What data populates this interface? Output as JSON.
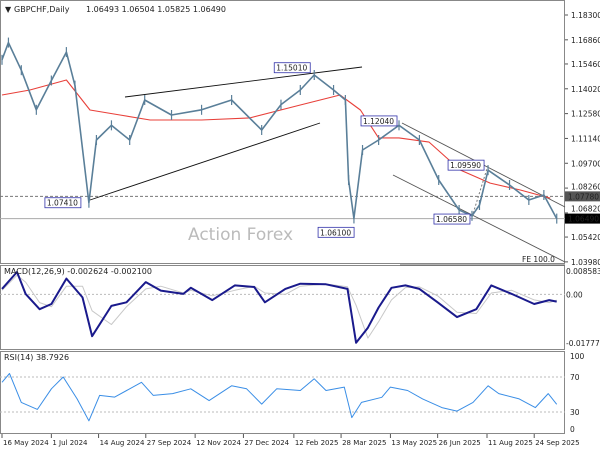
{
  "header": {
    "symbol_arrow": "▼",
    "title": "GBPCHF,Daily",
    "ohlc": "1.06493 1.06504 1.05825 1.06490"
  },
  "watermark": "Action Forex",
  "colors": {
    "price": "#5a7f99",
    "ma": "#e8403a",
    "macd": "#1a1a8c",
    "signal": "#c8c8c8",
    "rsi": "#3a8ee6",
    "annotation": "#3333aa"
  },
  "chart_data": [
    {
      "type": "line",
      "title": "GBPCHF,Daily",
      "price_axis_ticks": [
        "1.18300",
        "1.16860",
        "1.15460",
        "1.14020",
        "1.12580",
        "1.11140",
        "1.09700",
        "1.08260",
        "1.06820",
        "1.05420",
        "1.03980"
      ],
      "ylim": [
        1.0398,
        1.183
      ],
      "highlighted_levels": [
        {
          "label": "1.07780",
          "value": 1.0778,
          "style": "dashed"
        },
        {
          "label": "1.06490",
          "value": 1.0649,
          "style": "current"
        }
      ],
      "annotations": [
        {
          "label": "1.07410",
          "date": "2024-08-05",
          "value": 1.0741
        },
        {
          "label": "1.15010",
          "date": "2025-03-03",
          "value": 1.1501
        },
        {
          "label": "1.06100",
          "date": "2025-04-11",
          "value": 1.061
        },
        {
          "label": "1.12040",
          "date": "2025-05-21",
          "value": 1.1204
        },
        {
          "label": "1.09590",
          "date": "2025-08-12",
          "value": 1.0959
        },
        {
          "label": "1.06580",
          "date": "2025-07-28",
          "value": 1.0658
        }
      ],
      "fe_label": "FE 100.0",
      "fe_value": 1.0415,
      "series": [
        {
          "key": "price",
          "points": [
            [
              "2024-05-16",
              1.157
            ],
            [
              "2024-05-22",
              1.167
            ],
            [
              "2024-06-03",
              1.151
            ],
            [
              "2024-06-17",
              1.128
            ],
            [
              "2024-07-01",
              1.145
            ],
            [
              "2024-07-15",
              1.1615
            ],
            [
              "2024-07-23",
              1.142
            ],
            [
              "2024-08-05",
              1.0741
            ],
            [
              "2024-08-12",
              1.1105
            ],
            [
              "2024-08-26",
              1.119
            ],
            [
              "2024-09-12",
              1.1105
            ],
            [
              "2024-09-26",
              1.1337
            ],
            [
              "2024-10-21",
              1.125
            ],
            [
              "2024-11-18",
              1.128
            ],
            [
              "2024-12-16",
              1.1337
            ],
            [
              "2025-01-13",
              1.1163
            ],
            [
              "2025-01-31",
              1.131
            ],
            [
              "2025-02-18",
              1.1395
            ],
            [
              "2025-03-03",
              1.1482
            ],
            [
              "2025-03-21",
              1.1395
            ],
            [
              "2025-04-01",
              1.1337
            ],
            [
              "2025-04-04",
              1.0873
            ],
            [
              "2025-04-09",
              1.065
            ],
            [
              "2025-04-17",
              1.1047
            ],
            [
              "2025-05-02",
              1.1105
            ],
            [
              "2025-05-21",
              1.119
            ],
            [
              "2025-06-09",
              1.1105
            ],
            [
              "2025-06-27",
              1.0873
            ],
            [
              "2025-07-16",
              1.0699
            ],
            [
              "2025-07-28",
              1.0665
            ],
            [
              "2025-08-04",
              1.0728
            ],
            [
              "2025-08-12",
              1.093
            ],
            [
              "2025-09-01",
              1.0844
            ],
            [
              "2025-09-19",
              1.0757
            ],
            [
              "2025-10-03",
              1.0786
            ],
            [
              "2025-10-15",
              1.0649
            ]
          ]
        },
        {
          "key": "ma",
          "points": [
            [
              "2024-05-16",
              1.1366
            ],
            [
              "2024-06-11",
              1.1395
            ],
            [
              "2024-07-15",
              1.1453
            ],
            [
              "2024-08-06",
              1.1279
            ],
            [
              "2024-09-03",
              1.125
            ],
            [
              "2024-10-01",
              1.1221
            ],
            [
              "2024-11-18",
              1.1221
            ],
            [
              "2025-01-02",
              1.1233
            ],
            [
              "2025-02-18",
              1.1308
            ],
            [
              "2025-03-27",
              1.1366
            ],
            [
              "2025-04-15",
              1.1279
            ],
            [
              "2025-05-02",
              1.1117
            ],
            [
              "2025-05-21",
              1.1117
            ],
            [
              "2025-06-18",
              1.1093
            ],
            [
              "2025-07-17",
              1.0931
            ],
            [
              "2025-08-14",
              1.0855
            ],
            [
              "2025-09-11",
              1.0815
            ],
            [
              "2025-10-09",
              1.0768
            ]
          ]
        }
      ],
      "x_tick_labels": [
        {
          "label": "16 May 2024",
          "date": "2024-05-16"
        },
        {
          "label": "1 Jul 2024",
          "date": "2024-07-01"
        },
        {
          "label": "14 Aug 2024",
          "date": "2024-08-14"
        },
        {
          "label": "27 Sep 2024",
          "date": "2024-09-27"
        },
        {
          "label": "12 Nov 2024",
          "date": "2024-11-12"
        },
        {
          "label": "27 Dec 2024",
          "date": "2024-12-27"
        },
        {
          "label": "12 Feb 2025",
          "date": "2025-02-12"
        },
        {
          "label": "28 Mar 2025",
          "date": "2025-03-28"
        },
        {
          "label": "13 May 2025",
          "date": "2025-05-13"
        },
        {
          "label": "26 Jun 2025",
          "date": "2025-06-26"
        },
        {
          "label": "11 Aug 2025",
          "date": "2025-08-11"
        },
        {
          "label": "24 Sep 2025",
          "date": "2025-09-24"
        }
      ]
    },
    {
      "type": "line",
      "title": "MACD(12,26,9) -0.002624 -0.002100",
      "axis_ticks": [
        {
          "label": "0.008583",
          "value": 0.008583
        },
        {
          "label": "0.00",
          "value": 0
        },
        {
          "label": "-0.017773",
          "value": -0.017773
        }
      ],
      "ylim": [
        -0.017773,
        0.008583
      ],
      "series": [
        {
          "key": "macd",
          "points": [
            [
              "2024-05-16",
              0.002
            ],
            [
              "2024-05-30",
              0.0082
            ],
            [
              "2024-06-07",
              0.0002
            ],
            [
              "2024-06-20",
              -0.0054
            ],
            [
              "2024-07-01",
              -0.0035
            ],
            [
              "2024-07-15",
              0.0058
            ],
            [
              "2024-07-30",
              -0.0011
            ],
            [
              "2024-08-08",
              -0.0153
            ],
            [
              "2024-08-26",
              -0.0042
            ],
            [
              "2024-09-09",
              -0.0029
            ],
            [
              "2024-09-27",
              0.0045
            ],
            [
              "2024-10-11",
              0.0014
            ],
            [
              "2024-11-01",
              0.0002
            ],
            [
              "2024-11-08",
              0.0024
            ],
            [
              "2024-11-28",
              -0.0021
            ],
            [
              "2024-12-19",
              0.0033
            ],
            [
              "2025-01-06",
              0.0027
            ],
            [
              "2025-01-16",
              -0.0029
            ],
            [
              "2025-02-04",
              0.002
            ],
            [
              "2025-02-18",
              0.0039
            ],
            [
              "2025-03-14",
              0.0037
            ],
            [
              "2025-04-03",
              0.002
            ],
            [
              "2025-04-11",
              -0.0177
            ],
            [
              "2025-04-22",
              -0.0122
            ],
            [
              "2025-05-02",
              -0.0048
            ],
            [
              "2025-05-14",
              0.0024
            ],
            [
              "2025-05-27",
              0.0033
            ],
            [
              "2025-06-09",
              0.002
            ],
            [
              "2025-06-26",
              -0.0029
            ],
            [
              "2025-07-14",
              -0.0083
            ],
            [
              "2025-08-01",
              -0.0054
            ],
            [
              "2025-08-15",
              0.0033
            ],
            [
              "2025-09-03",
              0.0002
            ],
            [
              "2025-09-24",
              -0.0035
            ],
            [
              "2025-10-08",
              -0.0021
            ],
            [
              "2025-10-15",
              -0.002624
            ]
          ]
        },
        {
          "key": "signal",
          "points": [
            [
              "2024-05-16",
              0.0015
            ],
            [
              "2024-05-30",
              0.007
            ],
            [
              "2024-06-07",
              0.0045
            ],
            [
              "2024-06-20",
              -0.003
            ],
            [
              "2024-07-01",
              -0.0045
            ],
            [
              "2024-07-15",
              0.003
            ],
            [
              "2024-07-30",
              0.003
            ],
            [
              "2024-08-08",
              -0.006
            ],
            [
              "2024-08-26",
              -0.011
            ],
            [
              "2024-09-09",
              -0.0045
            ],
            [
              "2024-09-27",
              0.002
            ],
            [
              "2024-10-11",
              0.003
            ],
            [
              "2024-11-01",
              0.0005
            ],
            [
              "2024-11-08",
              0.0015
            ],
            [
              "2024-11-28",
              -0.0005
            ],
            [
              "2024-12-19",
              0.0015
            ],
            [
              "2025-01-06",
              0.003
            ],
            [
              "2025-01-16",
              0.0005
            ],
            [
              "2025-02-04",
              0.0
            ],
            [
              "2025-02-18",
              0.003
            ],
            [
              "2025-03-14",
              0.0038
            ],
            [
              "2025-04-03",
              0.0028
            ],
            [
              "2025-04-11",
              -0.004
            ],
            [
              "2025-04-22",
              -0.016
            ],
            [
              "2025-05-02",
              -0.01
            ],
            [
              "2025-05-14",
              -0.002
            ],
            [
              "2025-05-27",
              0.0025
            ],
            [
              "2025-06-09",
              0.0028
            ],
            [
              "2025-06-26",
              -0.0005
            ],
            [
              "2025-07-14",
              -0.0065
            ],
            [
              "2025-08-01",
              -0.007
            ],
            [
              "2025-08-15",
              0.0005
            ],
            [
              "2025-09-03",
              0.0015
            ],
            [
              "2025-09-24",
              -0.002
            ],
            [
              "2025-10-08",
              -0.003
            ],
            [
              "2025-10-15",
              -0.0021
            ]
          ]
        }
      ]
    },
    {
      "type": "line",
      "title": "RSI(14) 38.7926",
      "axis_ticks": [
        {
          "label": "100",
          "value": 100
        },
        {
          "label": "70",
          "value": 70
        },
        {
          "label": "30",
          "value": 30
        },
        {
          "label": "0",
          "value": 0
        }
      ],
      "ylim": [
        0,
        100
      ],
      "series": [
        {
          "key": "rsi",
          "points": [
            [
              "2024-05-16",
              64
            ],
            [
              "2024-05-23",
              74
            ],
            [
              "2024-06-03",
              41
            ],
            [
              "2024-06-18",
              33
            ],
            [
              "2024-07-01",
              56.5
            ],
            [
              "2024-07-12",
              70
            ],
            [
              "2024-07-25",
              45
            ],
            [
              "2024-08-05",
              20
            ],
            [
              "2024-08-15",
              49
            ],
            [
              "2024-08-29",
              47
            ],
            [
              "2024-09-23",
              64
            ],
            [
              "2024-10-04",
              49
            ],
            [
              "2024-10-22",
              51
            ],
            [
              "2024-11-08",
              56.5
            ],
            [
              "2024-11-25",
              43
            ],
            [
              "2024-12-16",
              60
            ],
            [
              "2024-12-30",
              56.5
            ],
            [
              "2025-01-13",
              39
            ],
            [
              "2025-01-27",
              56.5
            ],
            [
              "2025-02-18",
              54.6
            ],
            [
              "2025-03-03",
              68
            ],
            [
              "2025-03-14",
              54.6
            ],
            [
              "2025-03-31",
              58.5
            ],
            [
              "2025-04-07",
              23.6
            ],
            [
              "2025-04-16",
              41
            ],
            [
              "2025-05-05",
              46.8
            ],
            [
              "2025-05-13",
              58.5
            ],
            [
              "2025-05-29",
              54.6
            ],
            [
              "2025-06-12",
              45
            ],
            [
              "2025-06-30",
              35
            ],
            [
              "2025-07-14",
              31
            ],
            [
              "2025-07-29",
              41
            ],
            [
              "2025-08-12",
              60
            ],
            [
              "2025-08-22",
              51
            ],
            [
              "2025-09-10",
              45
            ],
            [
              "2025-09-25",
              35
            ],
            [
              "2025-10-07",
              51
            ],
            [
              "2025-10-15",
              38.7926
            ]
          ]
        }
      ]
    }
  ]
}
